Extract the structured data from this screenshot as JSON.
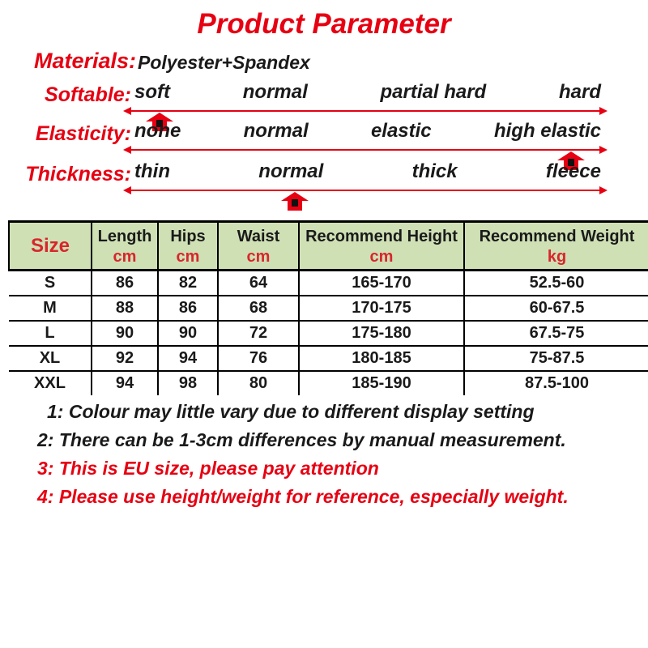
{
  "title": "Product Parameter",
  "materials": {
    "label": "Materials:",
    "value": "Polyester+Spandex"
  },
  "scales": [
    {
      "label": "Softable:",
      "options": [
        "soft",
        "normal",
        "partial hard",
        "hard"
      ],
      "marker_percent": 6,
      "selected": "soft"
    },
    {
      "label": "Elasticity:",
      "options": [
        "none",
        "normal",
        "elastic",
        "high elastic"
      ],
      "marker_percent": 94,
      "selected": "high elastic"
    },
    {
      "label": "Thickness:",
      "options": [
        "thin",
        "normal",
        "thick",
        "fleece"
      ],
      "marker_percent": 35,
      "selected": "normal"
    }
  ],
  "table": {
    "columns": [
      {
        "label": "Size",
        "unit": ""
      },
      {
        "label": "Length",
        "unit": "cm"
      },
      {
        "label": "Hips",
        "unit": "cm"
      },
      {
        "label": "Waist",
        "unit": "cm"
      },
      {
        "label": "Recommend Height",
        "unit": "cm"
      },
      {
        "label": "Recommend Weight",
        "unit": "kg"
      }
    ],
    "rows": [
      {
        "size": "S",
        "length": "86",
        "hips": "82",
        "waist": "64",
        "height": "165-170",
        "weight": "52.5-60"
      },
      {
        "size": "M",
        "length": "88",
        "hips": "86",
        "waist": "68",
        "height": "170-175",
        "weight": "60-67.5"
      },
      {
        "size": "L",
        "length": "90",
        "hips": "90",
        "waist": "72",
        "height": "175-180",
        "weight": "67.5-75"
      },
      {
        "size": "XL",
        "length": "92",
        "hips": "94",
        "waist": "76",
        "height": "180-185",
        "weight": "75-87.5"
      },
      {
        "size": "XXL",
        "length": "94",
        "hips": "98",
        "waist": "80",
        "height": "185-190",
        "weight": "87.5-100"
      }
    ]
  },
  "notes": [
    {
      "text": "1: Colour may little vary due to different display setting",
      "color": "#1a1a1a"
    },
    {
      "text": "2: There can be 1-3cm differences by manual measurement.",
      "color": "#1a1a1a"
    },
    {
      "text": "3: This is EU size, please pay attention",
      "color": "#e60012"
    },
    {
      "text": "4: Please use height/weight for reference, especially weight.",
      "color": "#e60012"
    }
  ],
  "colors": {
    "accent_red": "#e60012",
    "unit_red": "#d8262c",
    "table_header_green": "#cfe0b5",
    "text_black": "#1a1a1a"
  }
}
